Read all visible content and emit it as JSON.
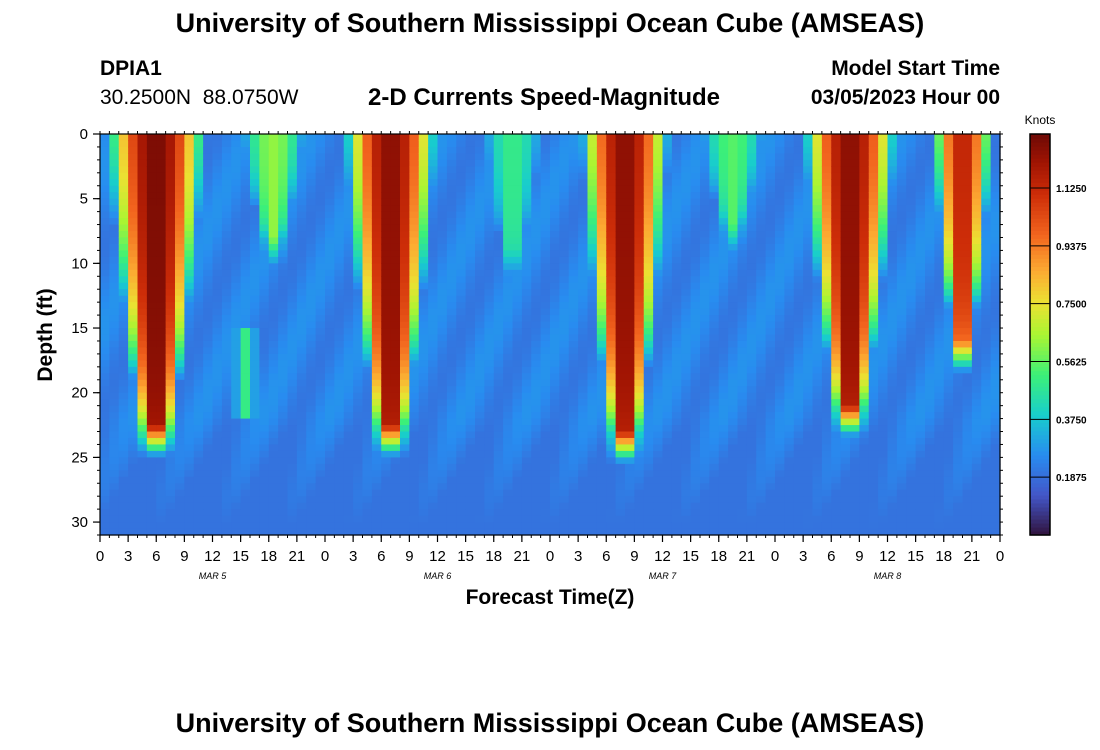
{
  "header": {
    "title": "University of Southern Mississippi Ocean Cube (AMSEAS)",
    "station": "DPIA1",
    "lat": "30.2500N",
    "lon": "88.0750W",
    "subtitle": "2-D Currents Speed-Magnitude",
    "start_label": "Model Start Time",
    "start_value": "03/05/2023 Hour 00"
  },
  "footer": {
    "title": "University of Southern Mississippi Ocean Cube (AMSEAS)"
  },
  "chart_data": {
    "type": "heatmap",
    "title": "2-D Currents Speed-Magnitude",
    "xlabel": "Forecast Time(Z)",
    "ylabel": "Depth (ft)",
    "xlim": [
      0,
      96
    ],
    "ylim": [
      31,
      0
    ],
    "x_tick_labels": [
      "0",
      "3",
      "6",
      "9",
      "12",
      "15",
      "18",
      "21",
      "0",
      "3",
      "6",
      "9",
      "12",
      "15",
      "18",
      "21",
      "0",
      "3",
      "6",
      "9",
      "12",
      "15",
      "18",
      "21",
      "0",
      "3",
      "6",
      "9",
      "12",
      "15",
      "18",
      "21",
      "0"
    ],
    "y_ticks": [
      0,
      5,
      10,
      15,
      20,
      25,
      30
    ],
    "day_labels": [
      {
        "hour": 12,
        "label": "MAR 5"
      },
      {
        "hour": 36,
        "label": "MAR 6"
      },
      {
        "hour": 60,
        "label": "MAR 7"
      },
      {
        "hour": 84,
        "label": "MAR 8"
      }
    ],
    "colorbar": {
      "label": "Knots",
      "min": 0,
      "max": 1.3,
      "ticks": [
        0.1875,
        0.375,
        0.5625,
        0.75,
        0.9375,
        1.125
      ],
      "tick_labels": [
        "0.1875",
        "0.3750",
        "0.5625",
        "0.7500",
        "0.9375",
        "1.1250"
      ]
    },
    "features": [
      {
        "name": "ebb-1",
        "center_hour": 6,
        "halfwidth_hours": 5.3,
        "max_depth_ft": 22.5,
        "peak_knots": 1.28
      },
      {
        "name": "flood-1",
        "center_hour": 18.5,
        "halfwidth_hours": 3.5,
        "max_depth_ft": 8,
        "peak_knots": 0.62
      },
      {
        "name": "ebb-2",
        "center_hour": 31,
        "halfwidth_hours": 5,
        "max_depth_ft": 22.5,
        "peak_knots": 1.25
      },
      {
        "name": "flood-2",
        "center_hour": 44,
        "halfwidth_hours": 3.2,
        "max_depth_ft": 9,
        "peak_knots": 0.5
      },
      {
        "name": "ebb-3",
        "center_hour": 56,
        "halfwidth_hours": 4.8,
        "max_depth_ft": 23,
        "peak_knots": 1.25
      },
      {
        "name": "flood-3",
        "center_hour": 67.5,
        "halfwidth_hours": 3.5,
        "max_depth_ft": 7,
        "peak_knots": 0.55
      },
      {
        "name": "ebb-4",
        "center_hour": 80,
        "halfwidth_hours": 5,
        "max_depth_ft": 21,
        "peak_knots": 1.25
      },
      {
        "name": "ebb-5",
        "center_hour": 92,
        "halfwidth_hours": 3.2,
        "max_depth_ft": 16,
        "peak_knots": 1.15
      }
    ]
  }
}
